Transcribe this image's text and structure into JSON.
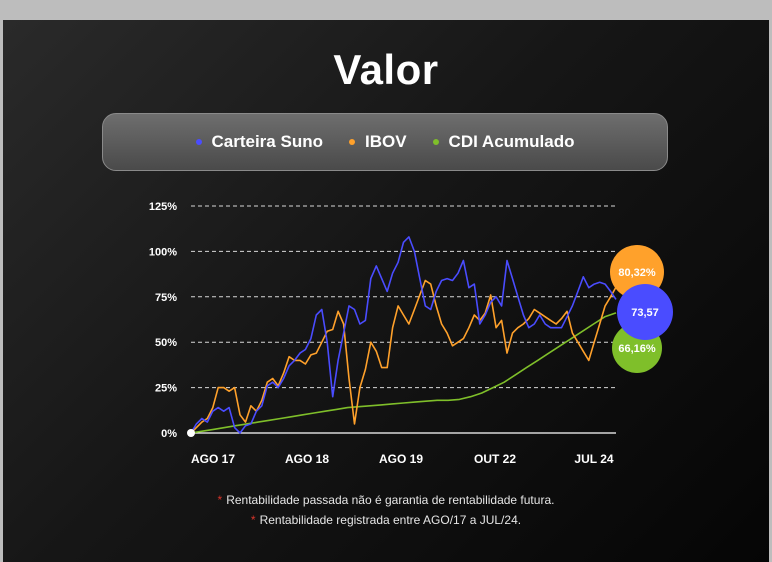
{
  "title": "Valor",
  "legend": [
    {
      "label": "Carteira Suno",
      "color": "#4a4cff"
    },
    {
      "label": "IBOV",
      "color": "#ffa12b"
    },
    {
      "label": "CDI Acumulado",
      "color": "#7fbf2a"
    }
  ],
  "notes": [
    "Rentabilidade passada não é garantia de rentabilidade futura.",
    "Rentabilidade registrada entre AGO/17 a JUL/24."
  ],
  "chart_data": {
    "type": "line",
    "x_ticks": [
      "AGO 17",
      "AGO 18",
      "AGO 19",
      "OUT 22",
      "JUL 24"
    ],
    "y_ticks": [
      "0%",
      "25%",
      "50%",
      "75%",
      "100%",
      "125%"
    ],
    "ylim": [
      0,
      125
    ],
    "grid": true,
    "series": [
      {
        "name": "Carteira Suno",
        "color": "#4a4cff",
        "end_label": "73,57",
        "values": [
          0,
          5,
          8,
          6,
          12,
          14,
          12,
          14,
          3,
          0,
          4,
          5,
          12,
          15,
          26,
          28,
          25,
          30,
          37,
          40,
          44,
          46,
          52,
          65,
          68,
          50,
          20,
          40,
          55,
          70,
          68,
          60,
          62,
          85,
          92,
          85,
          78,
          88,
          94,
          105,
          108,
          100,
          85,
          70,
          68,
          78,
          84,
          85,
          84,
          88,
          95,
          80,
          82,
          60,
          65,
          72,
          75,
          70,
          95,
          85,
          75,
          65,
          58,
          60,
          65,
          60,
          58,
          58,
          58,
          64,
          70,
          78,
          86,
          80,
          82,
          83,
          82,
          78,
          73.57
        ]
      },
      {
        "name": "IBOV",
        "color": "#ffa12b",
        "end_label": "80,32%",
        "values": [
          0,
          3,
          6,
          8,
          14,
          25,
          25,
          23,
          25,
          10,
          6,
          15,
          12,
          18,
          28,
          30,
          26,
          33,
          42,
          40,
          40,
          38,
          43,
          44,
          50,
          56,
          57,
          67,
          60,
          30,
          5,
          25,
          35,
          50,
          45,
          36,
          36,
          58,
          70,
          65,
          60,
          68,
          76,
          84,
          82,
          70,
          60,
          55,
          48,
          50,
          52,
          58,
          65,
          62,
          66,
          76,
          58,
          62,
          44,
          55,
          58,
          60,
          63,
          68,
          66,
          64,
          62,
          60,
          63,
          67,
          55,
          50,
          45,
          40,
          50,
          60,
          70,
          75,
          80.32
        ]
      },
      {
        "name": "CDI Acumulado",
        "color": "#7fbf2a",
        "end_label": "66,16%",
        "values": [
          0,
          1,
          2,
          3,
          4,
          5,
          6,
          7,
          8,
          9,
          10,
          11,
          12,
          13,
          14,
          14.5,
          15,
          15.5,
          16,
          16.5,
          17,
          17.5,
          18,
          18,
          18.5,
          20,
          22,
          25,
          28,
          32,
          36,
          40,
          44,
          48,
          52,
          56,
          60,
          64,
          66.16
        ]
      }
    ]
  }
}
